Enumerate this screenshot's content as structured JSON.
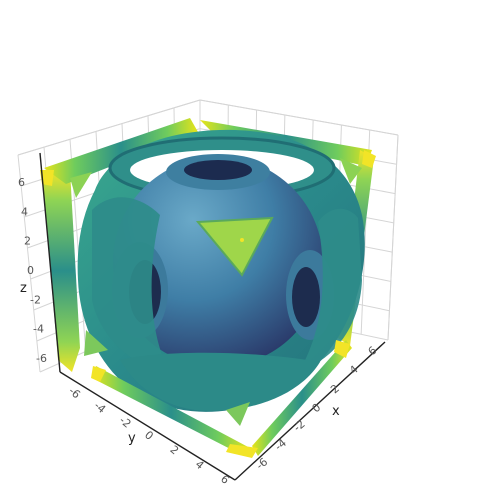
{
  "chart_data": {
    "type": "isosurface",
    "title": "",
    "axes": {
      "x": {
        "label": "x",
        "range": [
          -7,
          7
        ],
        "ticks": [
          "-6",
          "-4",
          "-2",
          "0",
          "2",
          "4",
          "6"
        ]
      },
      "y": {
        "label": "y",
        "range": [
          -7,
          7
        ],
        "ticks": [
          "-6",
          "-4",
          "-2",
          "0",
          "2",
          "4",
          "6"
        ]
      },
      "z": {
        "label": "z",
        "range": [
          -7,
          7
        ],
        "ticks": [
          "-6",
          "-4",
          "-2",
          "0",
          "2",
          "4",
          "6"
        ]
      }
    },
    "grid": true,
    "colorscale": "viridis",
    "colorbar": false,
    "colors": {
      "inner_sphere_light": "#5a97b8",
      "inner_sphere_dark": "#2e3c6a",
      "cage": "#2f8f8a",
      "cage_dark": "#1f6c73",
      "yellow": "#f2e427",
      "lime": "#9bd84b",
      "green": "#47b46b"
    }
  }
}
